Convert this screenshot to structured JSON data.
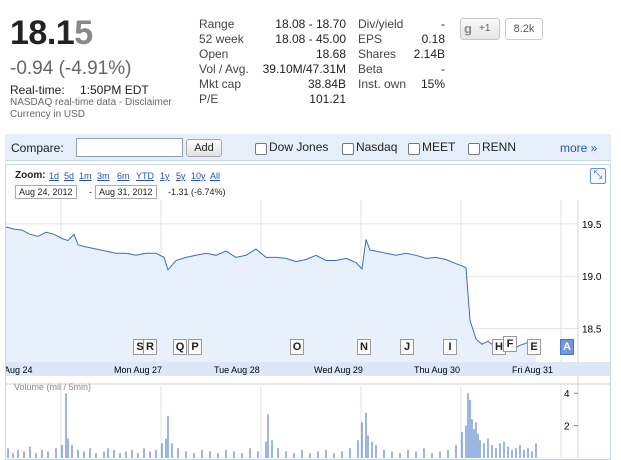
{
  "quote": {
    "price_main": "18.1",
    "price_last_digit": "5",
    "change": "-0.94 (-4.91%)",
    "realtime_label": "Real-time:",
    "realtime_time": "1:50PM EDT",
    "data_note": "NASDAQ real-time data - Disclaimer",
    "currency_note": "Currency in USD"
  },
  "stats_left": [
    {
      "label": "Range",
      "value": "18.08 - 18.70"
    },
    {
      "label": "52 week",
      "value": "18.08 - 45.00"
    },
    {
      "label": "Open",
      "value": "18.68"
    },
    {
      "label": "Vol / Avg.",
      "value": "39.10M/47.31M"
    },
    {
      "label": "Mkt cap",
      "value": "38.84B"
    },
    {
      "label": "P/E",
      "value": "101.21"
    }
  ],
  "stats_right": [
    {
      "label": "Div/yield",
      "value": "-"
    },
    {
      "label": "EPS",
      "value": "0.18"
    },
    {
      "label": "Shares",
      "value": "2.14B"
    },
    {
      "label": "Beta",
      "value": "-"
    },
    {
      "label": "Inst. own",
      "value": "15%"
    }
  ],
  "plusone": {
    "g_glyph": "g",
    "label": "+1",
    "count": "8.2k"
  },
  "compare": {
    "label": "Compare:",
    "input_value": "",
    "add_label": "Add",
    "options": [
      "Dow Jones",
      "Nasdaq",
      "MEET",
      "RENN"
    ],
    "more_label": "more »"
  },
  "chart_controls": {
    "zoom_label": "Zoom:",
    "zoom_options": [
      "1d",
      "5d",
      "1m",
      "3m",
      "6m",
      "YTD",
      "1y",
      "5y",
      "10y",
      "All"
    ],
    "from_date": "Aug 24, 2012",
    "dash": "-",
    "to_date": "Aug 31, 2012",
    "range_change": "-1.31 (-6.74%)",
    "expand_icon": "expand-arrows-icon",
    "expand_glyph": "⤡",
    "volume_label": "Volume (mil / 5min)"
  },
  "news_flags": [
    "S",
    "R",
    "Q",
    "P",
    "O",
    "N",
    "J",
    "I",
    "H",
    "F",
    "E",
    "A"
  ],
  "colors": {
    "price_line": "#3a6cc4",
    "price_fill": "#e8f0fb",
    "volume_bar": "#3a6cc4",
    "axis_band": "#dce8f7",
    "link": "#2254b6"
  },
  "chart_data": {
    "type": "line",
    "title": "",
    "x_tick_labels": [
      "Aug 24",
      "Mon Aug 27",
      "Tue Aug 28",
      "Wed Aug 29",
      "Thu Aug 30",
      "Fri Aug 31"
    ],
    "x_domain": [
      0,
      5.72
    ],
    "y_tick_labels": [
      "19.5",
      "19.0",
      "18.5"
    ],
    "ylim": [
      18.2,
      19.7
    ],
    "grid": true,
    "series": [
      {
        "x": [
          0,
          0.08,
          0.16,
          0.24,
          0.32,
          0.4,
          0.48,
          0.56,
          0.62,
          0.68,
          0.72,
          0.8,
          0.9,
          1.0,
          1.1,
          1.2,
          1.3,
          1.4,
          1.5,
          1.58,
          1.62,
          1.7,
          1.8,
          1.9,
          2.0,
          2.1,
          2.2,
          2.3,
          2.4,
          2.5,
          2.6,
          2.7,
          2.8,
          2.9,
          3.0,
          3.1,
          3.2,
          3.3,
          3.4,
          3.5,
          3.56,
          3.6,
          3.64,
          3.7,
          3.8,
          3.9,
          4.0,
          4.1,
          4.2,
          4.3,
          4.4,
          4.5,
          4.56,
          4.6,
          4.64,
          4.7,
          4.76,
          4.82,
          4.9,
          4.98,
          5.06,
          5.14,
          5.2,
          5.26,
          5.3
        ],
        "y": [
          19.47,
          19.45,
          19.44,
          19.4,
          19.38,
          19.42,
          19.4,
          19.36,
          19.34,
          19.4,
          19.3,
          19.28,
          19.26,
          19.24,
          19.22,
          19.22,
          19.2,
          19.22,
          19.22,
          19.18,
          19.06,
          19.15,
          19.18,
          19.2,
          19.22,
          19.2,
          19.24,
          19.18,
          19.2,
          19.26,
          19.18,
          19.18,
          19.17,
          19.14,
          19.16,
          19.2,
          19.15,
          19.15,
          19.17,
          19.13,
          19.07,
          19.35,
          19.25,
          19.24,
          19.22,
          19.2,
          19.22,
          19.2,
          19.17,
          19.18,
          19.16,
          19.12,
          19.1,
          19.08,
          18.58,
          18.4,
          18.35,
          18.38,
          18.32,
          18.36,
          18.3,
          18.34,
          18.36,
          18.4,
          18.38
        ]
      }
    ],
    "volume": {
      "ylabel": "Volume (mil / 5min)",
      "y_tick_labels": [
        "4",
        "2"
      ],
      "ylim": [
        0,
        4.2
      ],
      "x": [
        0.02,
        0.07,
        0.12,
        0.18,
        0.24,
        0.3,
        0.36,
        0.42,
        0.5,
        0.56,
        0.6,
        0.62,
        0.66,
        0.72,
        0.78,
        0.84,
        0.9,
        0.98,
        1.02,
        1.08,
        1.14,
        1.2,
        1.26,
        1.32,
        1.38,
        1.44,
        1.5,
        1.56,
        1.6,
        1.62,
        1.66,
        1.72,
        1.8,
        1.88,
        1.96,
        2.04,
        2.12,
        2.2,
        2.28,
        2.36,
        2.44,
        2.52,
        2.6,
        2.62,
        2.66,
        2.72,
        2.8,
        2.88,
        2.96,
        3.04,
        3.12,
        3.2,
        3.28,
        3.36,
        3.44,
        3.52,
        3.56,
        3.6,
        3.62,
        3.66,
        3.7,
        3.78,
        3.86,
        3.94,
        4.02,
        4.1,
        4.18,
        4.26,
        4.34,
        4.42,
        4.5,
        4.56,
        4.6,
        4.62,
        4.64,
        4.66,
        4.68,
        4.7,
        4.72,
        4.74,
        4.78,
        4.82,
        4.86,
        4.9,
        4.94,
        4.98,
        5.02,
        5.06,
        5.1,
        5.14,
        5.18,
        5.22,
        5.26,
        5.3
      ],
      "y": [
        0.6,
        0.3,
        0.5,
        0.4,
        0.7,
        0.3,
        0.5,
        0.4,
        0.6,
        0.8,
        4.0,
        1.2,
        0.8,
        0.5,
        0.4,
        0.6,
        0.3,
        0.4,
        0.6,
        0.5,
        0.3,
        0.4,
        0.5,
        0.3,
        0.6,
        0.4,
        0.5,
        0.9,
        1.2,
        2.6,
        0.9,
        0.6,
        0.4,
        0.3,
        0.5,
        0.4,
        0.3,
        0.5,
        0.4,
        0.3,
        0.6,
        0.4,
        1.0,
        2.7,
        1.1,
        0.6,
        0.4,
        0.3,
        0.5,
        0.3,
        0.4,
        0.5,
        0.3,
        0.4,
        0.6,
        1.1,
        2.2,
        2.8,
        1.4,
        1.0,
        0.8,
        0.5,
        0.4,
        0.3,
        0.5,
        0.4,
        0.6,
        0.3,
        0.4,
        0.5,
        0.8,
        1.6,
        2.0,
        4.0,
        3.6,
        2.4,
        1.8,
        2.2,
        1.5,
        1.1,
        0.9,
        1.2,
        0.8,
        0.6,
        0.9,
        1.0,
        0.7,
        0.5,
        0.6,
        0.8,
        0.5,
        0.6,
        0.4,
        0.9
      ]
    }
  }
}
